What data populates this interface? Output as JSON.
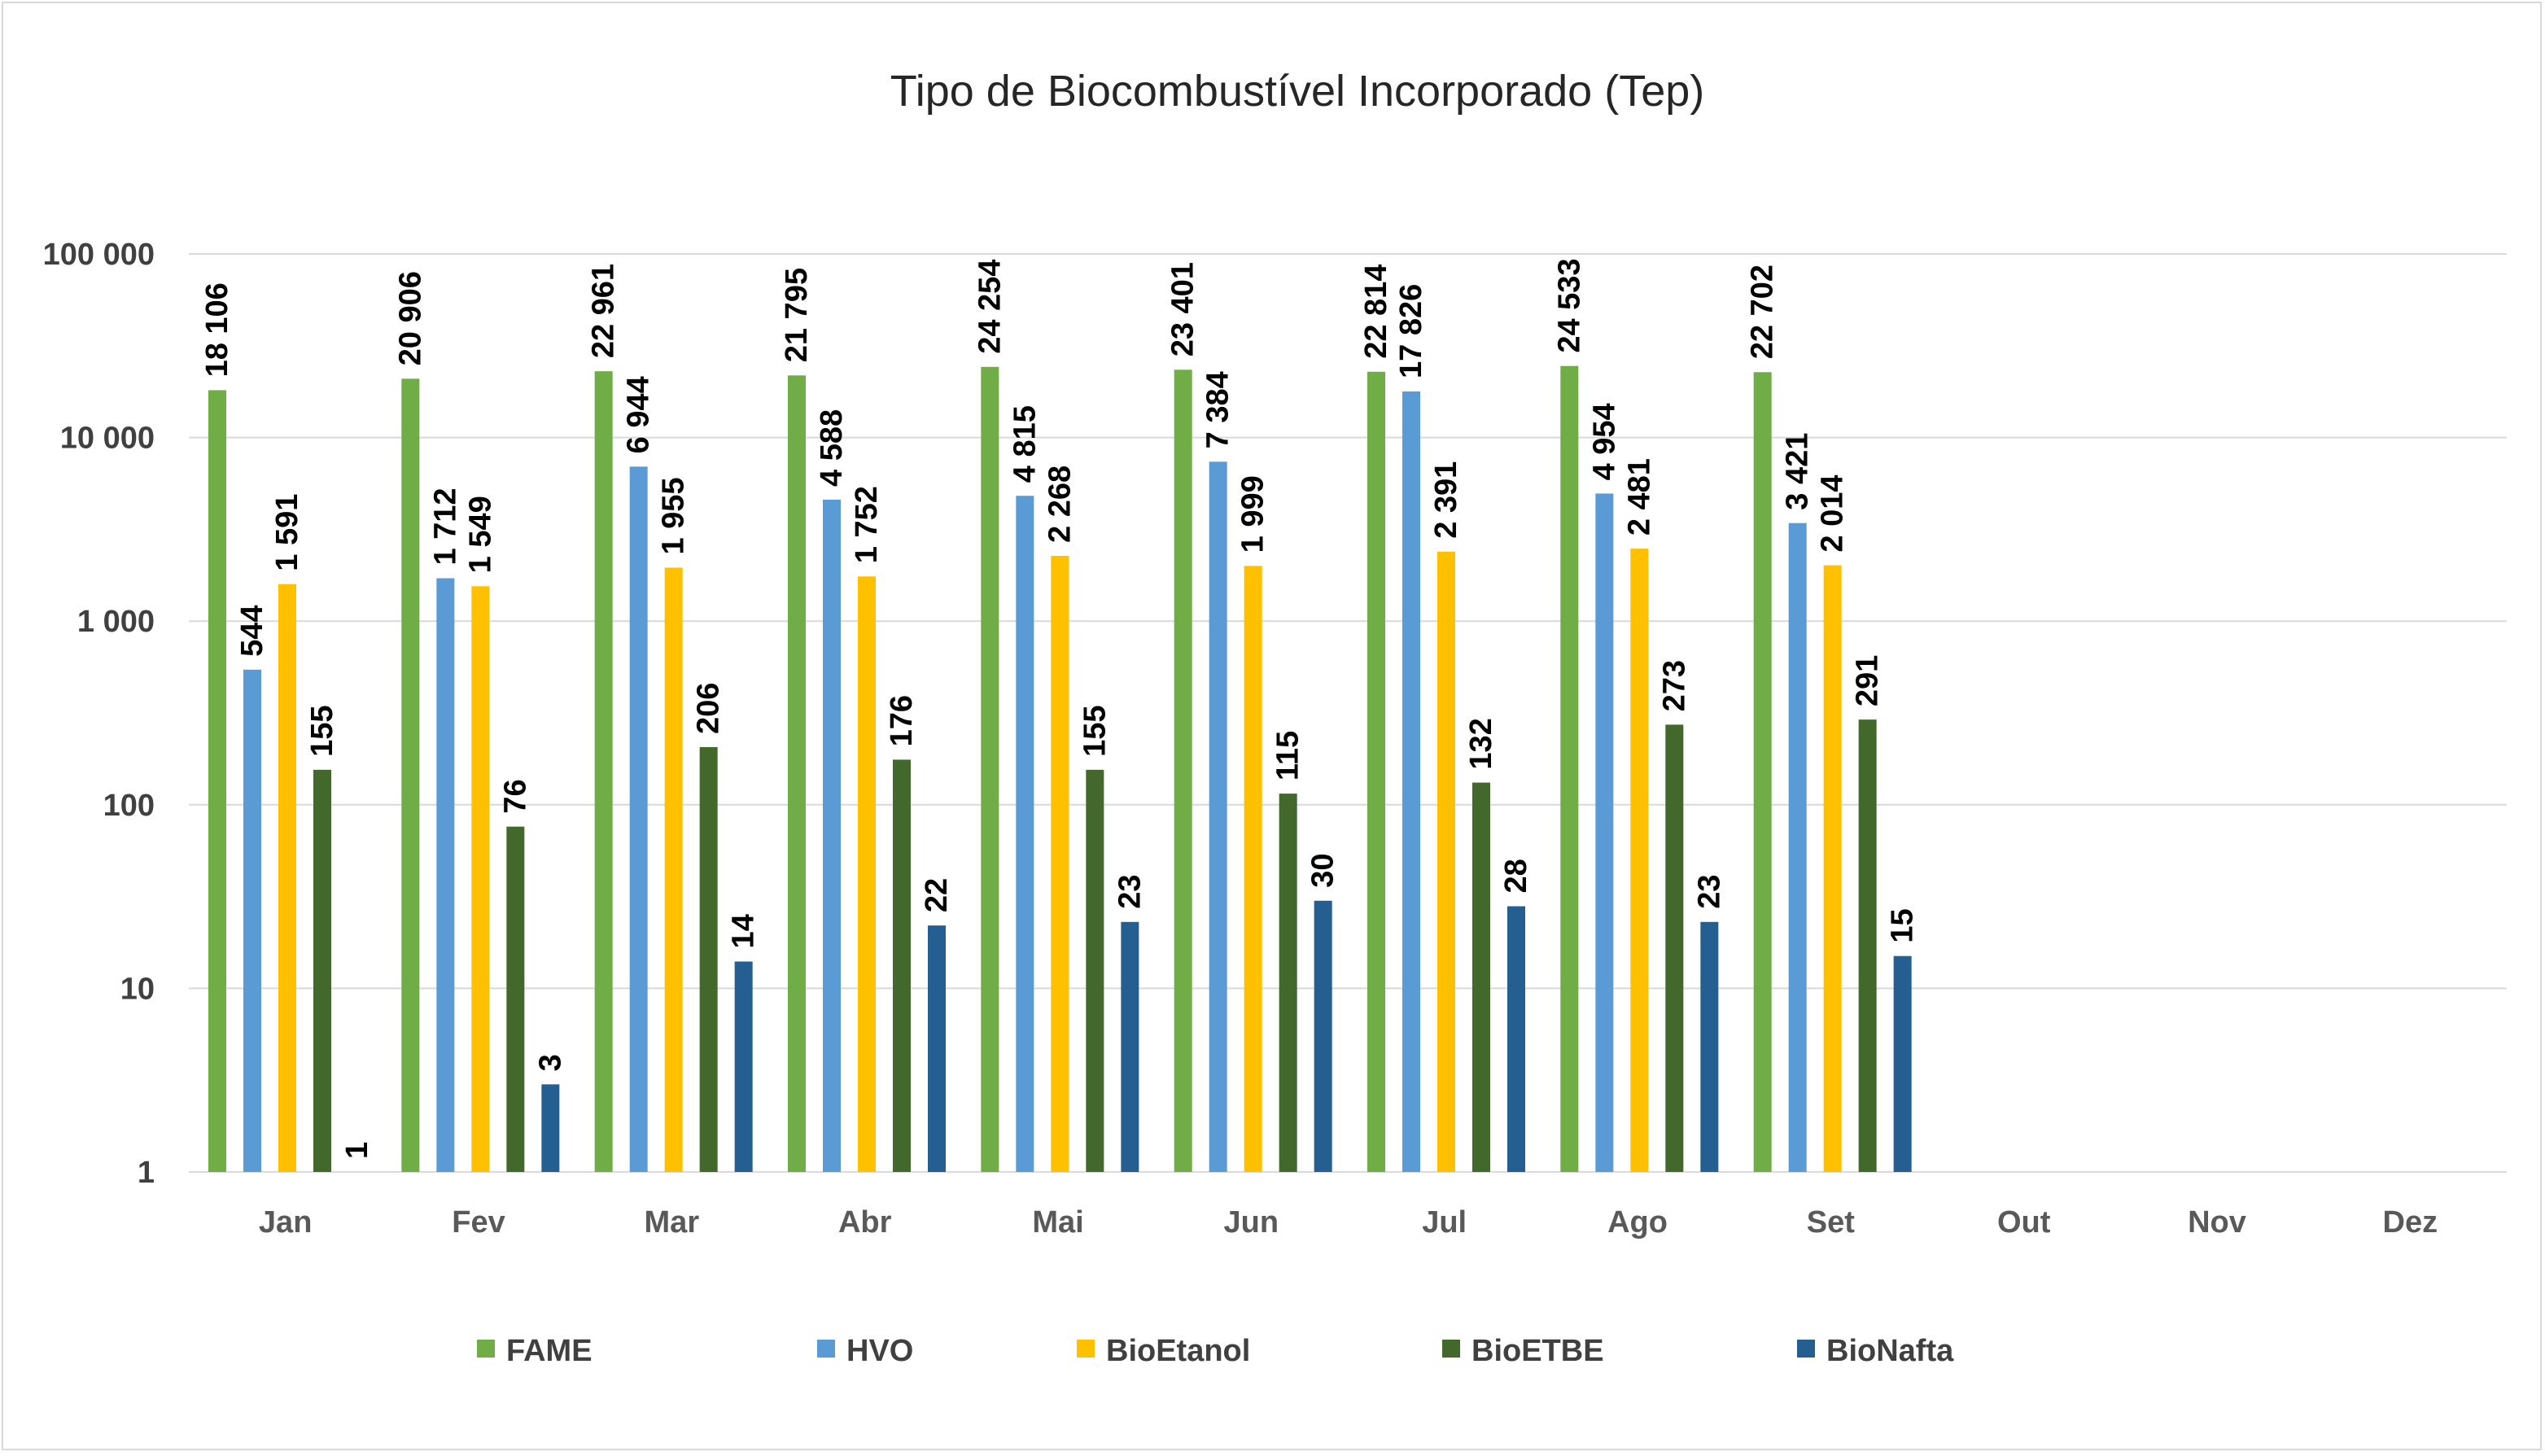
{
  "chart_data": {
    "type": "bar",
    "title": "Tipo de Biocombustível Incorporado (Tep)",
    "xlabel": "",
    "ylabel": "",
    "yscale": "log",
    "ylim": [
      1,
      100000
    ],
    "yticks": [
      1,
      10,
      100,
      1000,
      10000,
      100000
    ],
    "ytick_labels": [
      "1",
      "10",
      "100",
      "1 000",
      "10 000",
      "100 000"
    ],
    "grid": true,
    "legend_position": "bottom",
    "categories": [
      "Jan",
      "Fev",
      "Mar",
      "Abr",
      "Mai",
      "Jun",
      "Jul",
      "Ago",
      "Set",
      "Out",
      "Nov",
      "Dez"
    ],
    "series": [
      {
        "name": "FAME",
        "color": "#70ad47",
        "values": [
          18106,
          20906,
          22961,
          21795,
          24254,
          23401,
          22814,
          24533,
          22702,
          null,
          null,
          null
        ],
        "labels": [
          "18 106",
          "20 906",
          "22 961",
          "21 795",
          "24 254",
          "23 401",
          "22 814",
          "24 533",
          "22 702",
          "",
          "",
          ""
        ]
      },
      {
        "name": "HVO",
        "color": "#5b9bd5",
        "values": [
          544,
          1712,
          6944,
          4588,
          4815,
          7384,
          17826,
          4954,
          3421,
          null,
          null,
          null
        ],
        "labels": [
          "544",
          "1 712",
          "6 944",
          "4 588",
          "4 815",
          "7 384",
          "17 826",
          "4 954",
          "3 421",
          "",
          "",
          ""
        ]
      },
      {
        "name": "BioEtanol",
        "color": "#ffc000",
        "values": [
          1591,
          1549,
          1955,
          1752,
          2268,
          1999,
          2391,
          2481,
          2014,
          null,
          null,
          null
        ],
        "labels": [
          "1 591",
          "1 549",
          "1 955",
          "1 752",
          "2 268",
          "1 999",
          "2 391",
          "2 481",
          "2 014",
          "",
          "",
          ""
        ]
      },
      {
        "name": "BioETBE",
        "color": "#43682b",
        "values": [
          155,
          76,
          206,
          176,
          155,
          115,
          132,
          273,
          291,
          null,
          null,
          null
        ],
        "labels": [
          "155",
          "76",
          "206",
          "176",
          "155",
          "115",
          "132",
          "273",
          "291",
          "",
          "",
          ""
        ]
      },
      {
        "name": "BioNafta",
        "color": "#255e91",
        "values": [
          1,
          3,
          14,
          22,
          23,
          30,
          28,
          23,
          15,
          null,
          null,
          null
        ],
        "labels": [
          "1",
          "3",
          "14",
          "22",
          "23",
          "30",
          "28",
          "23",
          "15",
          "",
          "",
          ""
        ]
      }
    ]
  }
}
